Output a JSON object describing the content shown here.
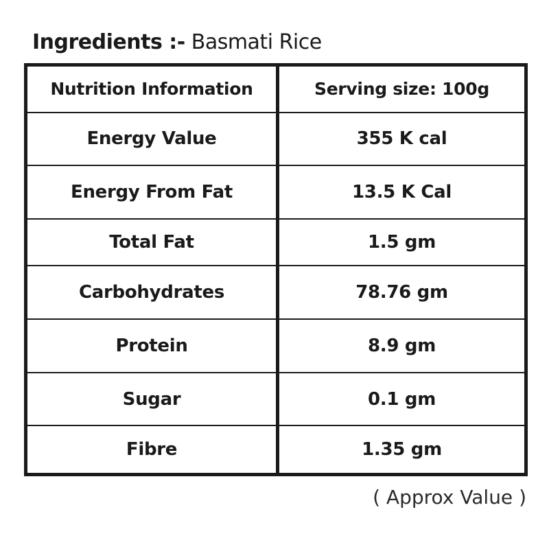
{
  "ingredients": {
    "label": "Ingredients :-",
    "value": "Basmati Rice"
  },
  "nutrition_table": {
    "headers": [
      "Nutrition Information",
      "Serving size: 100g"
    ],
    "rows": [
      {
        "nutrient": "Energy Value",
        "amount": "355 K cal"
      },
      {
        "nutrient": "Energy From Fat",
        "amount": "13.5 K Cal"
      },
      {
        "nutrient": "Total Fat",
        "amount": "1.5 gm"
      },
      {
        "nutrient": "Carbohydrates",
        "amount": "78.76 gm"
      },
      {
        "nutrient": "Protein",
        "amount": "8.9 gm"
      },
      {
        "nutrient": "Sugar",
        "amount": "0.1 gm"
      },
      {
        "nutrient": "Fibre",
        "amount": "1.35 gm"
      }
    ]
  },
  "footnote": "( Approx Value )"
}
